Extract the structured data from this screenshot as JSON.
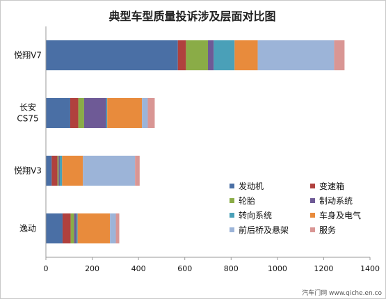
{
  "chart_data": {
    "type": "bar",
    "orientation": "horizontal",
    "stacked": true,
    "title": "典型车型质量投诉涉及层面对比图",
    "categories": [
      "悦翔V7",
      "长安CS75",
      "悦翔V3",
      "逸动"
    ],
    "category_lines": [
      [
        "悦翔V7"
      ],
      [
        "长安",
        "CS75"
      ],
      [
        "悦翔V3"
      ],
      [
        "逸动"
      ]
    ],
    "xlim": [
      0,
      1400
    ],
    "xticks": [
      0,
      200,
      400,
      600,
      800,
      1000,
      1200,
      1400
    ],
    "xtick_labels": [
      "0",
      "200",
      "400",
      "600",
      "800",
      "1000",
      "1200",
      "1400"
    ],
    "grid": false,
    "legend_position": "bottom-right",
    "series": [
      {
        "name": "发动机",
        "color": "#4a6fa5",
        "values": [
          570,
          105,
          25,
          72
        ]
      },
      {
        "name": "变速箱",
        "color": "#b0413e",
        "values": [
          35,
          35,
          25,
          35
        ]
      },
      {
        "name": "轮胎",
        "color": "#8aac47",
        "values": [
          95,
          25,
          5,
          15
        ]
      },
      {
        "name": "制动系统",
        "color": "#6e5a96",
        "values": [
          25,
          95,
          5,
          10
        ]
      },
      {
        "name": "转向系统",
        "color": "#4aa0b8",
        "values": [
          90,
          5,
          10,
          5
        ]
      },
      {
        "name": "车身及电气",
        "color": "#e88b3c",
        "values": [
          100,
          150,
          90,
          140
        ]
      },
      {
        "name": "前后桥及悬架",
        "color": "#9cb4d8",
        "values": [
          330,
          25,
          225,
          25
        ]
      },
      {
        "name": "服务",
        "color": "#d99694",
        "values": [
          45,
          30,
          20,
          15
        ]
      }
    ]
  },
  "watermark": "汽车门网 www.qiche.en.co"
}
